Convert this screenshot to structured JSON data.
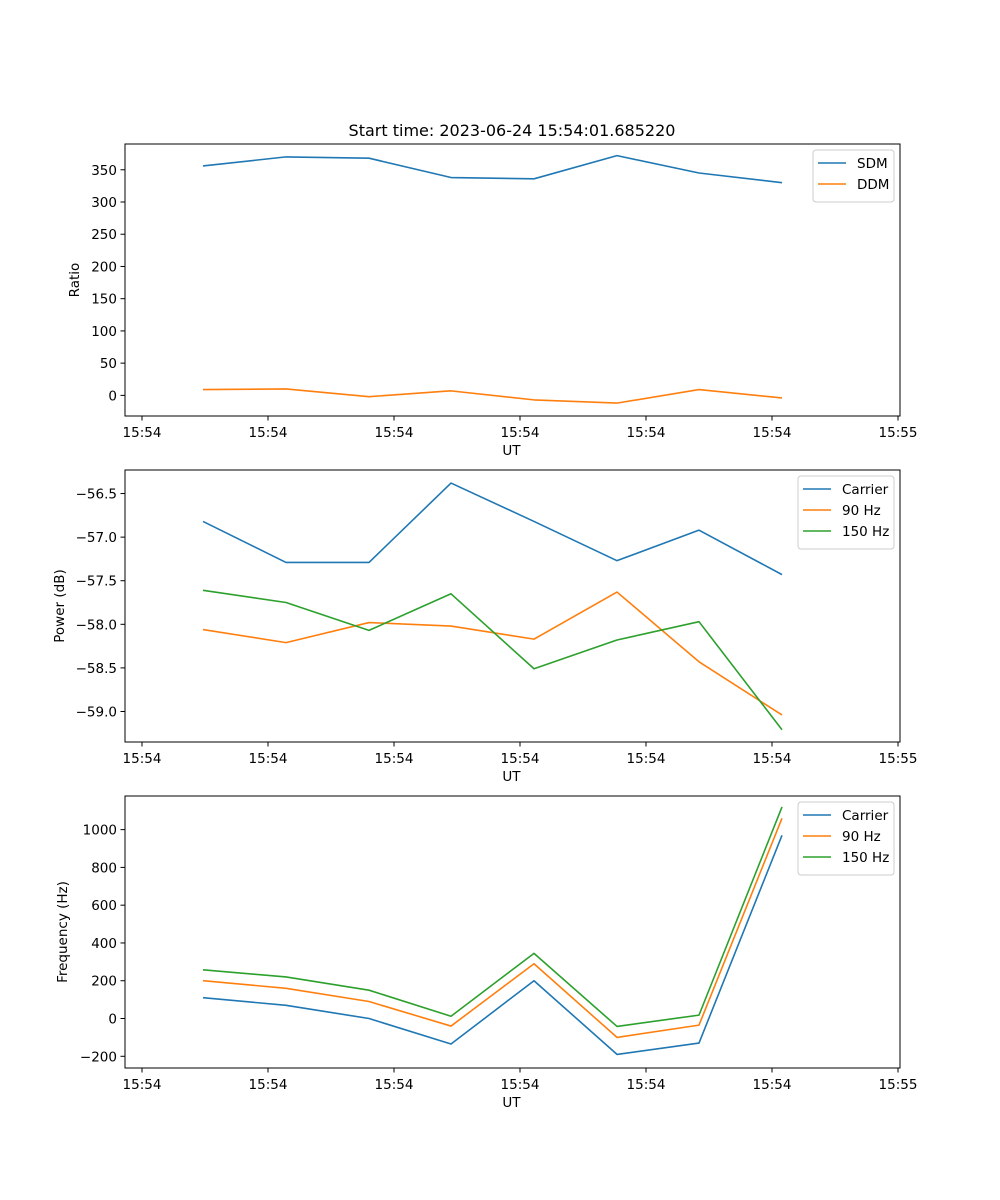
{
  "figure": {
    "title": "Start time: 2023-06-24 15:54:01.685220"
  },
  "chart_data": [
    {
      "type": "line",
      "title": "Start time: 2023-06-24 15:54:01.685220",
      "xlabel": "UT",
      "ylabel": "Ratio",
      "x_tick_labels": [
        "15:54",
        "15:54",
        "15:54",
        "15:54",
        "15:54",
        "15:54",
        "15:54"
      ],
      "x_tick_labels_end": "15:55",
      "y_ticks": [
        0,
        50,
        100,
        150,
        200,
        250,
        300,
        350
      ],
      "y_tick_labels": [
        "0",
        "50",
        "100",
        "150",
        "200",
        "250",
        "300",
        "350"
      ],
      "ylim": [
        -32,
        390
      ],
      "legend_position": "top-right",
      "grid": false,
      "series": [
        {
          "name": "SDM",
          "color": "#1f77b4",
          "values": [
            356,
            370,
            368,
            338,
            336,
            372,
            345,
            330
          ]
        },
        {
          "name": "DDM",
          "color": "#ff7f0e",
          "values": [
            9,
            10,
            -2,
            7,
            -7,
            -12,
            9,
            -4
          ]
        }
      ]
    },
    {
      "type": "line",
      "xlabel": "UT",
      "ylabel": "Power (dB)",
      "x_tick_labels": [
        "15:54",
        "15:54",
        "15:54",
        "15:54",
        "15:54",
        "15:54",
        "15:54"
      ],
      "x_tick_labels_end": "15:55",
      "y_ticks": [
        -59.0,
        -58.5,
        -58.0,
        -57.5,
        -57.0,
        -56.5
      ],
      "y_tick_labels": [
        "−59.0",
        "−58.5",
        "−58.0",
        "−57.5",
        "−57.0",
        "−56.5"
      ],
      "ylim": [
        -59.35,
        -56.23
      ],
      "legend_position": "top-right",
      "grid": false,
      "series": [
        {
          "name": "Carrier",
          "color": "#1f77b4",
          "values": [
            -56.82,
            -57.29,
            -57.29,
            -56.38,
            -56.82,
            -57.27,
            -56.92,
            -57.43
          ]
        },
        {
          "name": "90 Hz",
          "color": "#ff7f0e",
          "values": [
            -58.06,
            -58.21,
            -57.98,
            -58.02,
            -58.17,
            -57.63,
            -58.43,
            -59.04
          ]
        },
        {
          "name": "150 Hz",
          "color": "#2ca02c",
          "values": [
            -57.61,
            -57.75,
            -58.07,
            -57.65,
            -58.51,
            -58.18,
            -57.97,
            -59.21
          ]
        }
      ]
    },
    {
      "type": "line",
      "xlabel": "UT",
      "ylabel": "Frequency (Hz)",
      "x_tick_labels": [
        "15:54",
        "15:54",
        "15:54",
        "15:54",
        "15:54",
        "15:54",
        "15:54"
      ],
      "x_tick_labels_end": "15:55",
      "y_ticks": [
        -200,
        0,
        200,
        400,
        600,
        800,
        1000
      ],
      "y_tick_labels": [
        "−200",
        "0",
        "200",
        "400",
        "600",
        "800",
        "1000"
      ],
      "ylim": [
        -262,
        1178
      ],
      "legend_position": "top-right",
      "grid": false,
      "series": [
        {
          "name": "Carrier",
          "color": "#1f77b4",
          "values": [
            110,
            70,
            0,
            -135,
            200,
            -190,
            -130,
            970
          ]
        },
        {
          "name": "90 Hz",
          "color": "#ff7f0e",
          "values": [
            200,
            160,
            90,
            -40,
            290,
            -100,
            -35,
            1060
          ]
        },
        {
          "name": "150 Hz",
          "color": "#2ca02c",
          "values": [
            258,
            220,
            150,
            12,
            345,
            -42,
            18,
            1120
          ]
        }
      ]
    }
  ]
}
